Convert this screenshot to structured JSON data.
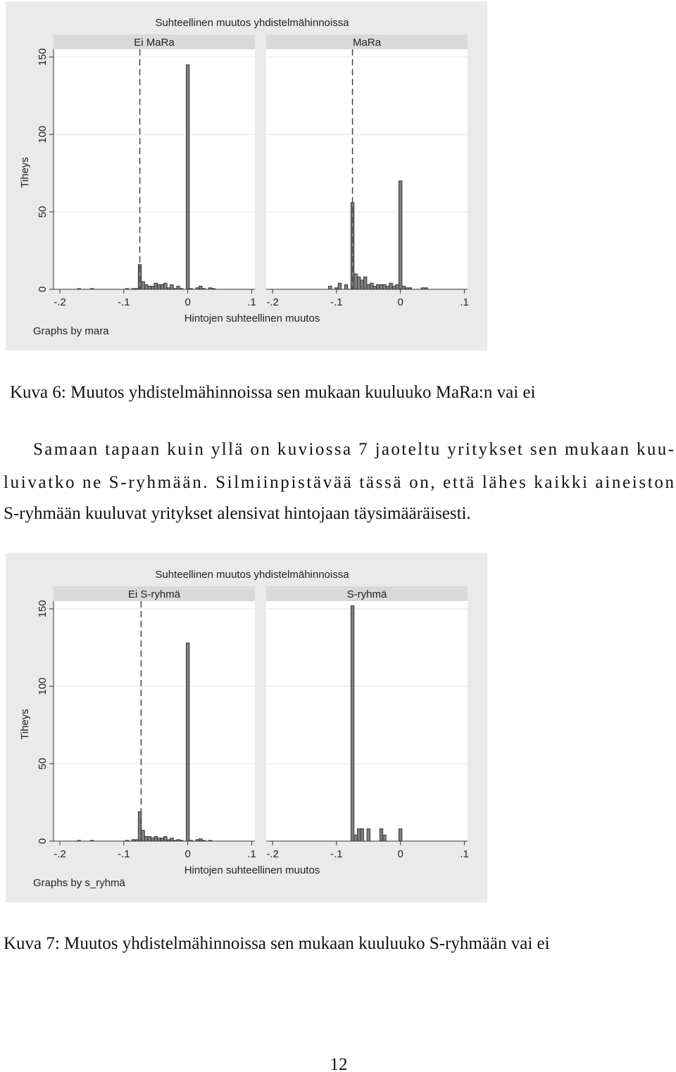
{
  "chart_data": [
    {
      "type": "histogram",
      "title": "Suhteellinen muutos yhdistelmähinnoissa",
      "ylabel": "Tiheys",
      "xlabel": "Hintojen suhteellinen muutos",
      "note": "Graphs by mara",
      "color": "#808080",
      "grid": true,
      "xlim": [
        -0.21,
        0.105
      ],
      "ylim": [
        0,
        155
      ],
      "xticks": [
        {
          "value": -0.2,
          "label": "-.2"
        },
        {
          "value": -0.1,
          "label": "-.1"
        },
        0,
        {
          "value": 0.1,
          "label": ".1"
        }
      ],
      "yticks": [
        0,
        50,
        100,
        150
      ],
      "bins": [
        -0.2025,
        -0.1975,
        -0.1925,
        -0.1875,
        -0.1825,
        -0.1775,
        -0.1725,
        -0.1675,
        -0.1625,
        -0.1575,
        -0.1525,
        -0.1475,
        -0.1425,
        -0.1375,
        -0.1325,
        -0.1275,
        -0.1225,
        -0.1175,
        -0.1125,
        -0.1075,
        -0.1025,
        -0.0975,
        -0.0925,
        -0.0875,
        -0.0825,
        -0.0775,
        -0.0725,
        -0.0675,
        -0.0625,
        -0.0575,
        -0.0525,
        -0.0475,
        -0.0425,
        -0.0375,
        -0.0325,
        -0.0275,
        -0.0225,
        -0.0175,
        -0.0125,
        -0.0075,
        -0.0025,
        0.0025,
        0.0075,
        0.0125,
        0.0175,
        0.0225,
        0.0275,
        0.0325,
        0.0375,
        0.0425,
        0.0475
      ],
      "panels": [
        {
          "name": "Ei MaRa",
          "xline": -0.075,
          "values": [
            0,
            0,
            0,
            0,
            0,
            0,
            0.5,
            0,
            0,
            0,
            0.5,
            0,
            0,
            0,
            0,
            0,
            0,
            0,
            0,
            0,
            0,
            0.5,
            0,
            0.5,
            0.5,
            16,
            5,
            3,
            2,
            2,
            4,
            3,
            3,
            4,
            1,
            3,
            0.5,
            2,
            0.5,
            0,
            145,
            0.5,
            0,
            1,
            2,
            0.5,
            0,
            1,
            0.5,
            0
          ]
        },
        {
          "name": "MaRa",
          "xline": -0.075,
          "values": [
            0,
            0,
            0,
            0,
            0,
            0,
            0,
            0,
            0,
            0,
            0,
            0,
            0,
            0,
            0,
            0,
            0,
            0,
            2,
            0,
            1,
            4,
            0,
            3,
            0,
            56,
            10,
            8,
            6,
            8,
            3,
            4,
            2,
            3,
            3,
            3,
            2,
            4,
            2,
            3,
            70,
            2,
            1,
            1,
            0,
            0,
            0,
            1,
            1,
            0
          ]
        }
      ]
    },
    {
      "type": "histogram",
      "title": "Suhteellinen muutos yhdistelmähinnoissa",
      "ylabel": "Tiheys",
      "xlabel": "Hintojen suhteellinen muutos",
      "note": "Graphs by s_ryhmä",
      "color": "#808080",
      "grid": true,
      "xlim": [
        -0.21,
        0.105
      ],
      "ylim": [
        0,
        155
      ],
      "xticks": [
        {
          "value": -0.2,
          "label": "-.2"
        },
        {
          "value": -0.1,
          "label": "-.1"
        },
        0,
        {
          "value": 0.1,
          "label": ".1"
        }
      ],
      "yticks": [
        0,
        50,
        100,
        150
      ],
      "bins": [
        -0.2025,
        -0.1975,
        -0.1925,
        -0.1875,
        -0.1825,
        -0.1775,
        -0.1725,
        -0.1675,
        -0.1625,
        -0.1575,
        -0.1525,
        -0.1475,
        -0.1425,
        -0.1375,
        -0.1325,
        -0.1275,
        -0.1225,
        -0.1175,
        -0.1125,
        -0.1075,
        -0.1025,
        -0.0975,
        -0.0925,
        -0.0875,
        -0.0825,
        -0.0775,
        -0.0725,
        -0.0675,
        -0.0625,
        -0.0575,
        -0.0525,
        -0.0475,
        -0.0425,
        -0.0375,
        -0.0325,
        -0.0275,
        -0.0225,
        -0.0175,
        -0.0125,
        -0.0075,
        -0.0025,
        0.0025,
        0.0075,
        0.0125,
        0.0175,
        0.0225,
        0.0275,
        0.0325,
        0.0375,
        0.0425,
        0.0475
      ],
      "panels": [
        {
          "name": "Ei S-ryhmä",
          "xline": -0.073,
          "values": [
            0,
            0,
            0,
            0,
            0,
            0,
            0.5,
            0,
            0,
            0,
            0.5,
            0,
            0,
            0,
            0,
            0,
            0,
            0,
            0,
            0,
            0,
            0.5,
            0,
            1,
            1,
            19,
            7,
            3,
            3,
            2,
            3,
            2,
            2,
            3,
            1,
            2,
            0.5,
            1,
            0.5,
            0,
            128,
            0.5,
            0,
            1,
            1.5,
            0.5,
            0,
            0.5,
            0,
            0
          ]
        },
        {
          "name": "S-ryhmä",
          "values": [
            0,
            0,
            0,
            0,
            0,
            0,
            0,
            0,
            0,
            0,
            0,
            0,
            0,
            0,
            0,
            0,
            0,
            0,
            0,
            0,
            0,
            0,
            0,
            0,
            0,
            152,
            4,
            8,
            8,
            0,
            8,
            0,
            0,
            0,
            8,
            4,
            0,
            0,
            0,
            0,
            8,
            0,
            0,
            0,
            0,
            0,
            0,
            0,
            0,
            0
          ]
        }
      ]
    }
  ],
  "captions": [
    "Kuva 6: Muutos yhdistelmähinnoissa sen mukaan kuuluuko MaRa:n vai ei",
    "Kuva 7: Muutos yhdistelmähinnoissa sen mukaan kuuluuko S-ryhmään vai ei"
  ],
  "paragraph": [
    "Samaan tapaan kuin yllä on kuviossa 7 jaoteltu yritykset sen mukaan kuu-",
    "luivatko ne S-ryhmään. Silmiinpistävää tässä on, että lähes kaikki aineiston",
    "S-ryhmään kuuluvat yritykset alensivat hintojaan täysimääräisesti."
  ],
  "page_number": "12"
}
